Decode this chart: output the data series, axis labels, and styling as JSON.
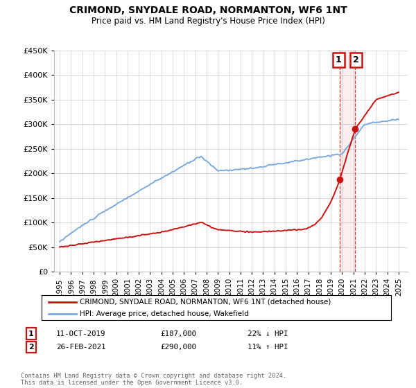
{
  "title": "CRIMOND, SNYDALE ROAD, NORMANTON, WF6 1NT",
  "subtitle": "Price paid vs. HM Land Registry's House Price Index (HPI)",
  "legend_line1": "CRIMOND, SNYDALE ROAD, NORMANTON, WF6 1NT (detached house)",
  "legend_line2": "HPI: Average price, detached house, Wakefield",
  "annotation1_date": "11-OCT-2019",
  "annotation1_price": "£187,000",
  "annotation1_pct": "22% ↓ HPI",
  "annotation2_date": "26-FEB-2021",
  "annotation2_price": "£290,000",
  "annotation2_pct": "11% ↑ HPI",
  "footer": "Contains HM Land Registry data © Crown copyright and database right 2024.\nThis data is licensed under the Open Government Licence v3.0.",
  "hpi_color": "#7aaadd",
  "price_color": "#cc1111",
  "annotation_box_color": "#cc1111",
  "dashed_line_color": "#cc1111",
  "background_color": "#ffffff",
  "grid_color": "#cccccc",
  "point1_x": 2019.78,
  "point1_y": 187000,
  "point2_x": 2021.15,
  "point2_y": 290000,
  "xlim_left": 1994.5,
  "xlim_right": 2025.8,
  "ylim": [
    0,
    450000
  ],
  "yticks": [
    0,
    50000,
    100000,
    150000,
    200000,
    250000,
    300000,
    350000,
    400000,
    450000
  ],
  "ytick_labels": [
    "£0",
    "£50K",
    "£100K",
    "£150K",
    "£200K",
    "£250K",
    "£300K",
    "£350K",
    "£400K",
    "£450K"
  ]
}
